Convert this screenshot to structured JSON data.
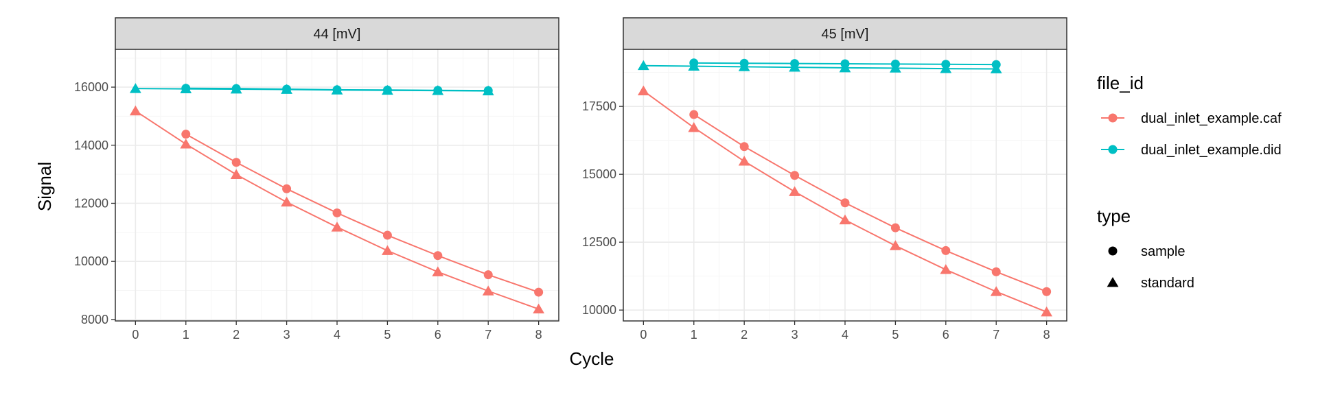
{
  "chart_data": {
    "type": "line",
    "xlabel": "Cycle",
    "ylabel": "Signal",
    "x_ticks": [
      0,
      1,
      2,
      3,
      4,
      5,
      6,
      7,
      8
    ],
    "grid": true,
    "legend_placement": "right",
    "colors": {
      "caf": "#F8766D",
      "did": "#00BFC4",
      "strip_bg": "#D9D9D9",
      "grid_major": "#EBEBEB",
      "grid_minor": "#F5F5F5",
      "border": "#333333"
    },
    "legend": {
      "color_title": "file_id",
      "color_items": [
        {
          "key": "caf",
          "label": "dual_inlet_example.caf"
        },
        {
          "key": "did",
          "label": "dual_inlet_example.did"
        }
      ],
      "shape_title": "type",
      "shape_items": [
        {
          "shape": "circle",
          "label": "sample"
        },
        {
          "shape": "triangle",
          "label": "standard"
        }
      ]
    },
    "panels": [
      {
        "strip": "44 [mV]",
        "xlim": [
          -0.4,
          8.4
        ],
        "ylim": [
          7950,
          17300
        ],
        "y_ticks": [
          8000,
          10000,
          12000,
          14000,
          16000
        ],
        "series": [
          {
            "file_id": "caf",
            "type": "sample",
            "x": [
              1,
              2,
              3,
              4,
              5,
              6,
              7,
              8
            ],
            "y": [
              14380,
              13410,
              12500,
              11670,
              10900,
              10200,
              9540,
              8940
            ]
          },
          {
            "file_id": "caf",
            "type": "standard",
            "x": [
              0,
              1,
              2,
              3,
              4,
              5,
              6,
              7,
              8
            ],
            "y": [
              15180,
              14040,
              12990,
              12040,
              11180,
              10370,
              9640,
              8980,
              8360
            ]
          },
          {
            "file_id": "did",
            "type": "sample",
            "x": [
              1,
              2,
              3,
              4,
              5,
              6,
              7
            ],
            "y": [
              15960,
              15950,
              15930,
              15910,
              15900,
              15890,
              15880
            ]
          },
          {
            "file_id": "did",
            "type": "standard",
            "x": [
              0,
              1,
              2,
              3,
              4,
              5,
              6,
              7
            ],
            "y": [
              15950,
              15940,
              15930,
              15920,
              15900,
              15890,
              15880,
              15870
            ]
          }
        ]
      },
      {
        "strip": "45 [mV]",
        "xlim": [
          -0.4,
          8.4
        ],
        "ylim": [
          9600,
          19600
        ],
        "y_ticks": [
          10000,
          12500,
          15000,
          17500
        ],
        "series": [
          {
            "file_id": "caf",
            "type": "sample",
            "x": [
              1,
              2,
              3,
              4,
              5,
              6,
              7,
              8
            ],
            "y": [
              17200,
              16020,
              14960,
              13950,
              13030,
              12190,
              11410,
              10680
            ]
          },
          {
            "file_id": "caf",
            "type": "standard",
            "x": [
              0,
              1,
              2,
              3,
              4,
              5,
              6,
              7,
              8
            ],
            "y": [
              18070,
              16720,
              15480,
              14360,
              13320,
              12370,
              11490,
              10680,
              9930
            ]
          },
          {
            "file_id": "did",
            "type": "sample",
            "x": [
              1,
              2,
              3,
              4,
              5,
              6,
              7
            ],
            "y": [
              19100,
              19090,
              19080,
              19070,
              19060,
              19050,
              19040
            ]
          },
          {
            "file_id": "did",
            "type": "standard",
            "x": [
              0,
              1,
              2,
              3,
              4,
              5,
              6,
              7
            ],
            "y": [
              19000,
              18980,
              18960,
              18940,
              18920,
              18910,
              18890,
              18880
            ]
          }
        ]
      }
    ]
  }
}
